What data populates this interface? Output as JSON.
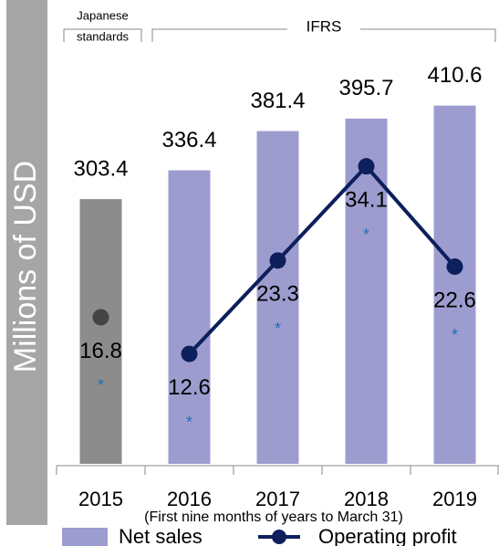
{
  "chart_data": {
    "type": "bar",
    "categories": [
      "2015",
      "2016",
      "2017",
      "2018",
      "2019"
    ],
    "series": [
      {
        "name": "Net sales",
        "type": "bar",
        "color": "#9d9ccf",
        "values": [
          303.4,
          336.4,
          381.4,
          395.7,
          410.6
        ]
      },
      {
        "name": "Operating profit",
        "type": "line",
        "axis": "y2",
        "color": "#0d1f5c",
        "values": [
          16.8,
          12.6,
          23.3,
          34.1,
          22.6
        ]
      }
    ],
    "periods": [
      {
        "label": [
          "Japanese",
          "standards"
        ],
        "span": 1,
        "color": "#8c8c8c",
        "marker_color": "#444444"
      },
      {
        "label": [
          "IFRS"
        ],
        "span": 4
      }
    ],
    "ylabel": "Millions of USD",
    "ylim": [
      0,
      450
    ],
    "y2lim": [
      0,
      45
    ],
    "note": "(First nine months of years to March 31)",
    "footnote_marker": "*"
  }
}
